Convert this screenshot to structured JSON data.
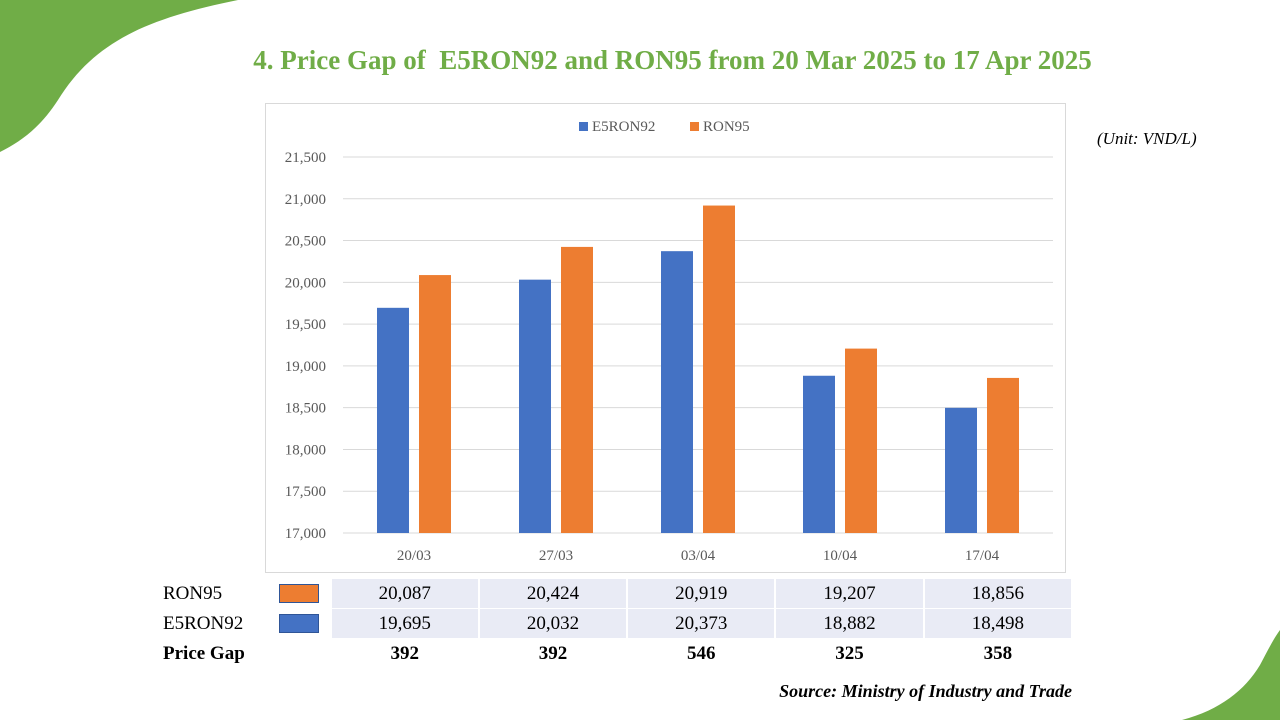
{
  "title": "4. Price Gap of  E5RON92 and RON95 from 20 Mar 2025 to 17 Apr 2025",
  "unit_label": "(Unit: VND/L)",
  "source": "Source: Ministry of Industry and Trade",
  "colors": {
    "title_green": "#70ad47",
    "e5ron92": "#4472c4",
    "ron95": "#ed7d31",
    "table_fill": "#e9ebf5"
  },
  "chart_data": {
    "type": "bar",
    "categories": [
      "20/03",
      "27/03",
      "03/04",
      "10/04",
      "17/04"
    ],
    "series": [
      {
        "name": "E5RON92",
        "values": [
          19695,
          20032,
          20373,
          18882,
          18498
        ]
      },
      {
        "name": "RON95",
        "values": [
          20087,
          20424,
          20919,
          19207,
          18856
        ]
      }
    ],
    "ylim": [
      17000,
      21500
    ],
    "yticks": [
      17000,
      17500,
      18000,
      18500,
      19000,
      19500,
      20000,
      20500,
      21000,
      21500
    ],
    "ytick_labels": [
      "17,000",
      "17,500",
      "18,000",
      "18,500",
      "19,000",
      "19,500",
      "20,000",
      "20,500",
      "21,000",
      "21,500"
    ],
    "grid": true,
    "legend_position": "top-center"
  },
  "table": {
    "rows": [
      {
        "label": "RON95",
        "series": "ron95",
        "values": [
          "20,087",
          "20,424",
          "20,919",
          "19,207",
          "18,856"
        ]
      },
      {
        "label": "E5RON92",
        "series": "e5ron92",
        "values": [
          "19,695",
          "20,032",
          "20,373",
          "18,882",
          "18,498"
        ]
      },
      {
        "label": "Price Gap",
        "series": "",
        "values": [
          "392",
          "392",
          "546",
          "325",
          "358"
        ]
      }
    ]
  }
}
